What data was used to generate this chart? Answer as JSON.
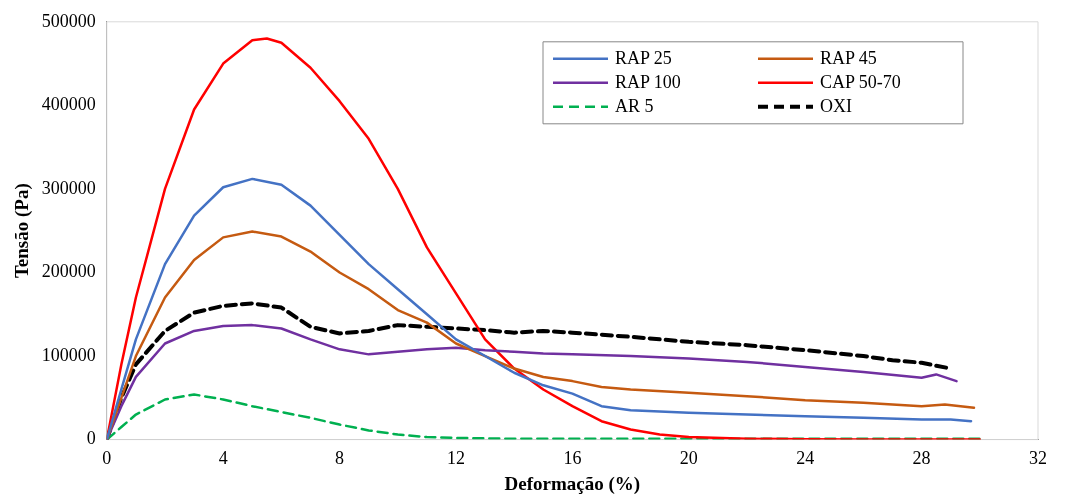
{
  "chart_data": {
    "type": "line",
    "xlabel": "Deformação (%)",
    "ylabel": "Tensão (Pa)",
    "xlim": [
      0,
      32
    ],
    "xticks": [
      0,
      4,
      8,
      12,
      16,
      20,
      24,
      28,
      32
    ],
    "ylim": [
      0,
      500000
    ],
    "yticks": [
      0,
      100000,
      200000,
      300000,
      400000,
      500000
    ],
    "grid": false,
    "legend": "top right",
    "marker": "none",
    "series": [
      {
        "name": "RAP 25",
        "color": "#4472c4",
        "line_style": "solid",
        "x": [
          0,
          0.5,
          1,
          2,
          3,
          4,
          5,
          6,
          7,
          8,
          9,
          10,
          11,
          12,
          13,
          14,
          15,
          16,
          17,
          18,
          20,
          22,
          24,
          26,
          28,
          29,
          29.7
        ],
        "values": [
          0,
          60000,
          120000,
          210000,
          268000,
          302000,
          312000,
          305000,
          280000,
          245000,
          210000,
          180000,
          150000,
          120000,
          100000,
          80000,
          65000,
          55000,
          40000,
          35000,
          32000,
          30000,
          28000,
          26000,
          24000,
          24000,
          22000
        ]
      },
      {
        "name": "RAP 45",
        "color": "#c55a11",
        "line_style": "solid",
        "x": [
          0,
          0.5,
          1,
          2,
          3,
          4,
          5,
          6,
          7,
          8,
          9,
          10,
          11,
          12,
          13,
          14,
          15,
          16,
          17,
          18,
          20,
          22,
          24,
          26,
          28,
          28.8,
          29.8
        ],
        "values": [
          0,
          50000,
          100000,
          170000,
          215000,
          242000,
          249000,
          243000,
          225000,
          200000,
          180000,
          155000,
          140000,
          115000,
          100000,
          85000,
          75000,
          70000,
          63000,
          60000,
          56000,
          52000,
          47000,
          44000,
          40000,
          42000,
          38000
        ]
      },
      {
        "name": "RAP 100",
        "color": "#7030a0",
        "line_style": "solid",
        "x": [
          0,
          0.5,
          1,
          2,
          3,
          4,
          5,
          6,
          7,
          8,
          9,
          10,
          11,
          12,
          13,
          14,
          15,
          16,
          18,
          20,
          22,
          24,
          26,
          28,
          28.5,
          29.2
        ],
        "values": [
          0,
          40000,
          75000,
          115000,
          130000,
          136000,
          137000,
          133000,
          120000,
          108000,
          102000,
          105000,
          108000,
          110000,
          107000,
          105000,
          103000,
          102000,
          100000,
          97000,
          93000,
          87000,
          81000,
          74000,
          78000,
          70000
        ]
      },
      {
        "name": "CAP 50-70",
        "color": "#ff0000",
        "line_style": "solid",
        "x": [
          0,
          0.5,
          1,
          2,
          3,
          4,
          5,
          5.5,
          6,
          7,
          8,
          9,
          10,
          11,
          12,
          13,
          14,
          15,
          16,
          17,
          18,
          19,
          20,
          22,
          24,
          26,
          28,
          30
        ],
        "values": [
          0,
          90000,
          170000,
          300000,
          395000,
          450000,
          478000,
          480000,
          475000,
          445000,
          405000,
          360000,
          300000,
          230000,
          175000,
          120000,
          85000,
          60000,
          40000,
          22000,
          12000,
          6000,
          3000,
          1000,
          500,
          0,
          0,
          0
        ]
      },
      {
        "name": "AR 5",
        "color": "#00b050",
        "line_style": "dashed",
        "x": [
          0,
          0.5,
          1,
          2,
          3,
          4,
          5,
          6,
          7,
          8,
          9,
          10,
          11,
          12,
          14,
          16,
          20,
          24,
          28,
          30
        ],
        "values": [
          0,
          15000,
          30000,
          48000,
          54000,
          48000,
          40000,
          33000,
          26000,
          18000,
          11000,
          6000,
          3000,
          2000,
          1000,
          1000,
          1000,
          1000,
          1000,
          1000
        ]
      },
      {
        "name": "OXI",
        "color": "#000000",
        "line_style": "dashed",
        "x": [
          0,
          0.5,
          1,
          2,
          3,
          4,
          5,
          6,
          7,
          8,
          9,
          10,
          11,
          12,
          13,
          14,
          15,
          16,
          18,
          20,
          22,
          24,
          26,
          27,
          28,
          29
        ],
        "values": [
          0,
          50000,
          90000,
          130000,
          152000,
          160000,
          163000,
          158000,
          135000,
          127000,
          130000,
          137000,
          135000,
          133000,
          131000,
          128000,
          130000,
          128000,
          123000,
          117000,
          113000,
          107000,
          100000,
          95000,
          92000,
          85000
        ]
      }
    ]
  }
}
